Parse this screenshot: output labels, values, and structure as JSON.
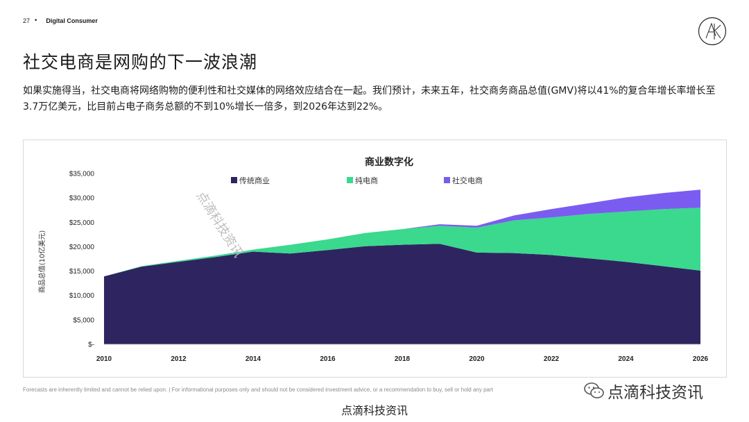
{
  "header": {
    "page_number": "27",
    "section": "Digital Consumer"
  },
  "title": "社交电商是网购的下一波浪潮",
  "intro": "如果实施得当，社交电商将网络购物的便利性和社交媒体的网络效应结合在一起。我们预计，未来五年，社交商务商品总值(GMV)将以41%的复合年增长率增长至3.7万亿美元，比目前占电子商务总额的不到10%增长一倍多，到2026年达到22%。",
  "chart_data": {
    "type": "area",
    "stacked": true,
    "title": "商业数字化",
    "ylabel": "商品总值(10亿美元)",
    "xlabel": "",
    "x": [
      2010,
      2011,
      2012,
      2013,
      2014,
      2015,
      2016,
      2017,
      2018,
      2019,
      2020,
      2021,
      2022,
      2023,
      2024,
      2025,
      2026
    ],
    "x_ticks": [
      "2010",
      "2012",
      "2014",
      "2016",
      "2018",
      "2020",
      "2022",
      "2024",
      "2026"
    ],
    "y_ticks": [
      "$-",
      "$5,000",
      "$10,000",
      "$15,000",
      "$20,000",
      "$25,000",
      "$30,000",
      "$35,000"
    ],
    "ylim": [
      0,
      35000
    ],
    "legend_position": "top",
    "grid": false,
    "series": [
      {
        "name": "传统商业",
        "color": "#2e2560",
        "values": [
          13900,
          15900,
          16900,
          17900,
          19000,
          18600,
          19300,
          20100,
          20400,
          20600,
          18800,
          18700,
          18300,
          17600,
          16900,
          16000,
          15100
        ]
      },
      {
        "name": "纯电商",
        "color": "#3ad98e",
        "values": [
          0,
          100,
          200,
          300,
          400,
          1800,
          2200,
          2700,
          3200,
          3700,
          5100,
          6700,
          7700,
          9100,
          10300,
          11700,
          12900
        ]
      },
      {
        "name": "社交电商",
        "color": "#7b5cf0",
        "values": [
          0,
          0,
          0,
          0,
          0,
          0,
          0,
          0,
          0,
          300,
          400,
          1000,
          1700,
          2200,
          2900,
          3300,
          3700
        ]
      }
    ]
  },
  "disclaimer": "Forecasts are inherently limited and cannot be relied upon. | For informational purposes only and should not be considered investment advice, or a recommendation to buy, sell or hold any part",
  "watermark": {
    "brand": "点滴科技资讯",
    "footer": "点滴科技资讯",
    "diagonal": "点滴科技资讯"
  },
  "colors": {
    "traditional": "#2e2560",
    "pure_ecommerce": "#3ad98e",
    "social": "#7b5cf0",
    "wechat_icon": "#555555"
  },
  "icons": {
    "logo": "circle-letter-logo-icon",
    "wechat": "wechat-icon"
  }
}
